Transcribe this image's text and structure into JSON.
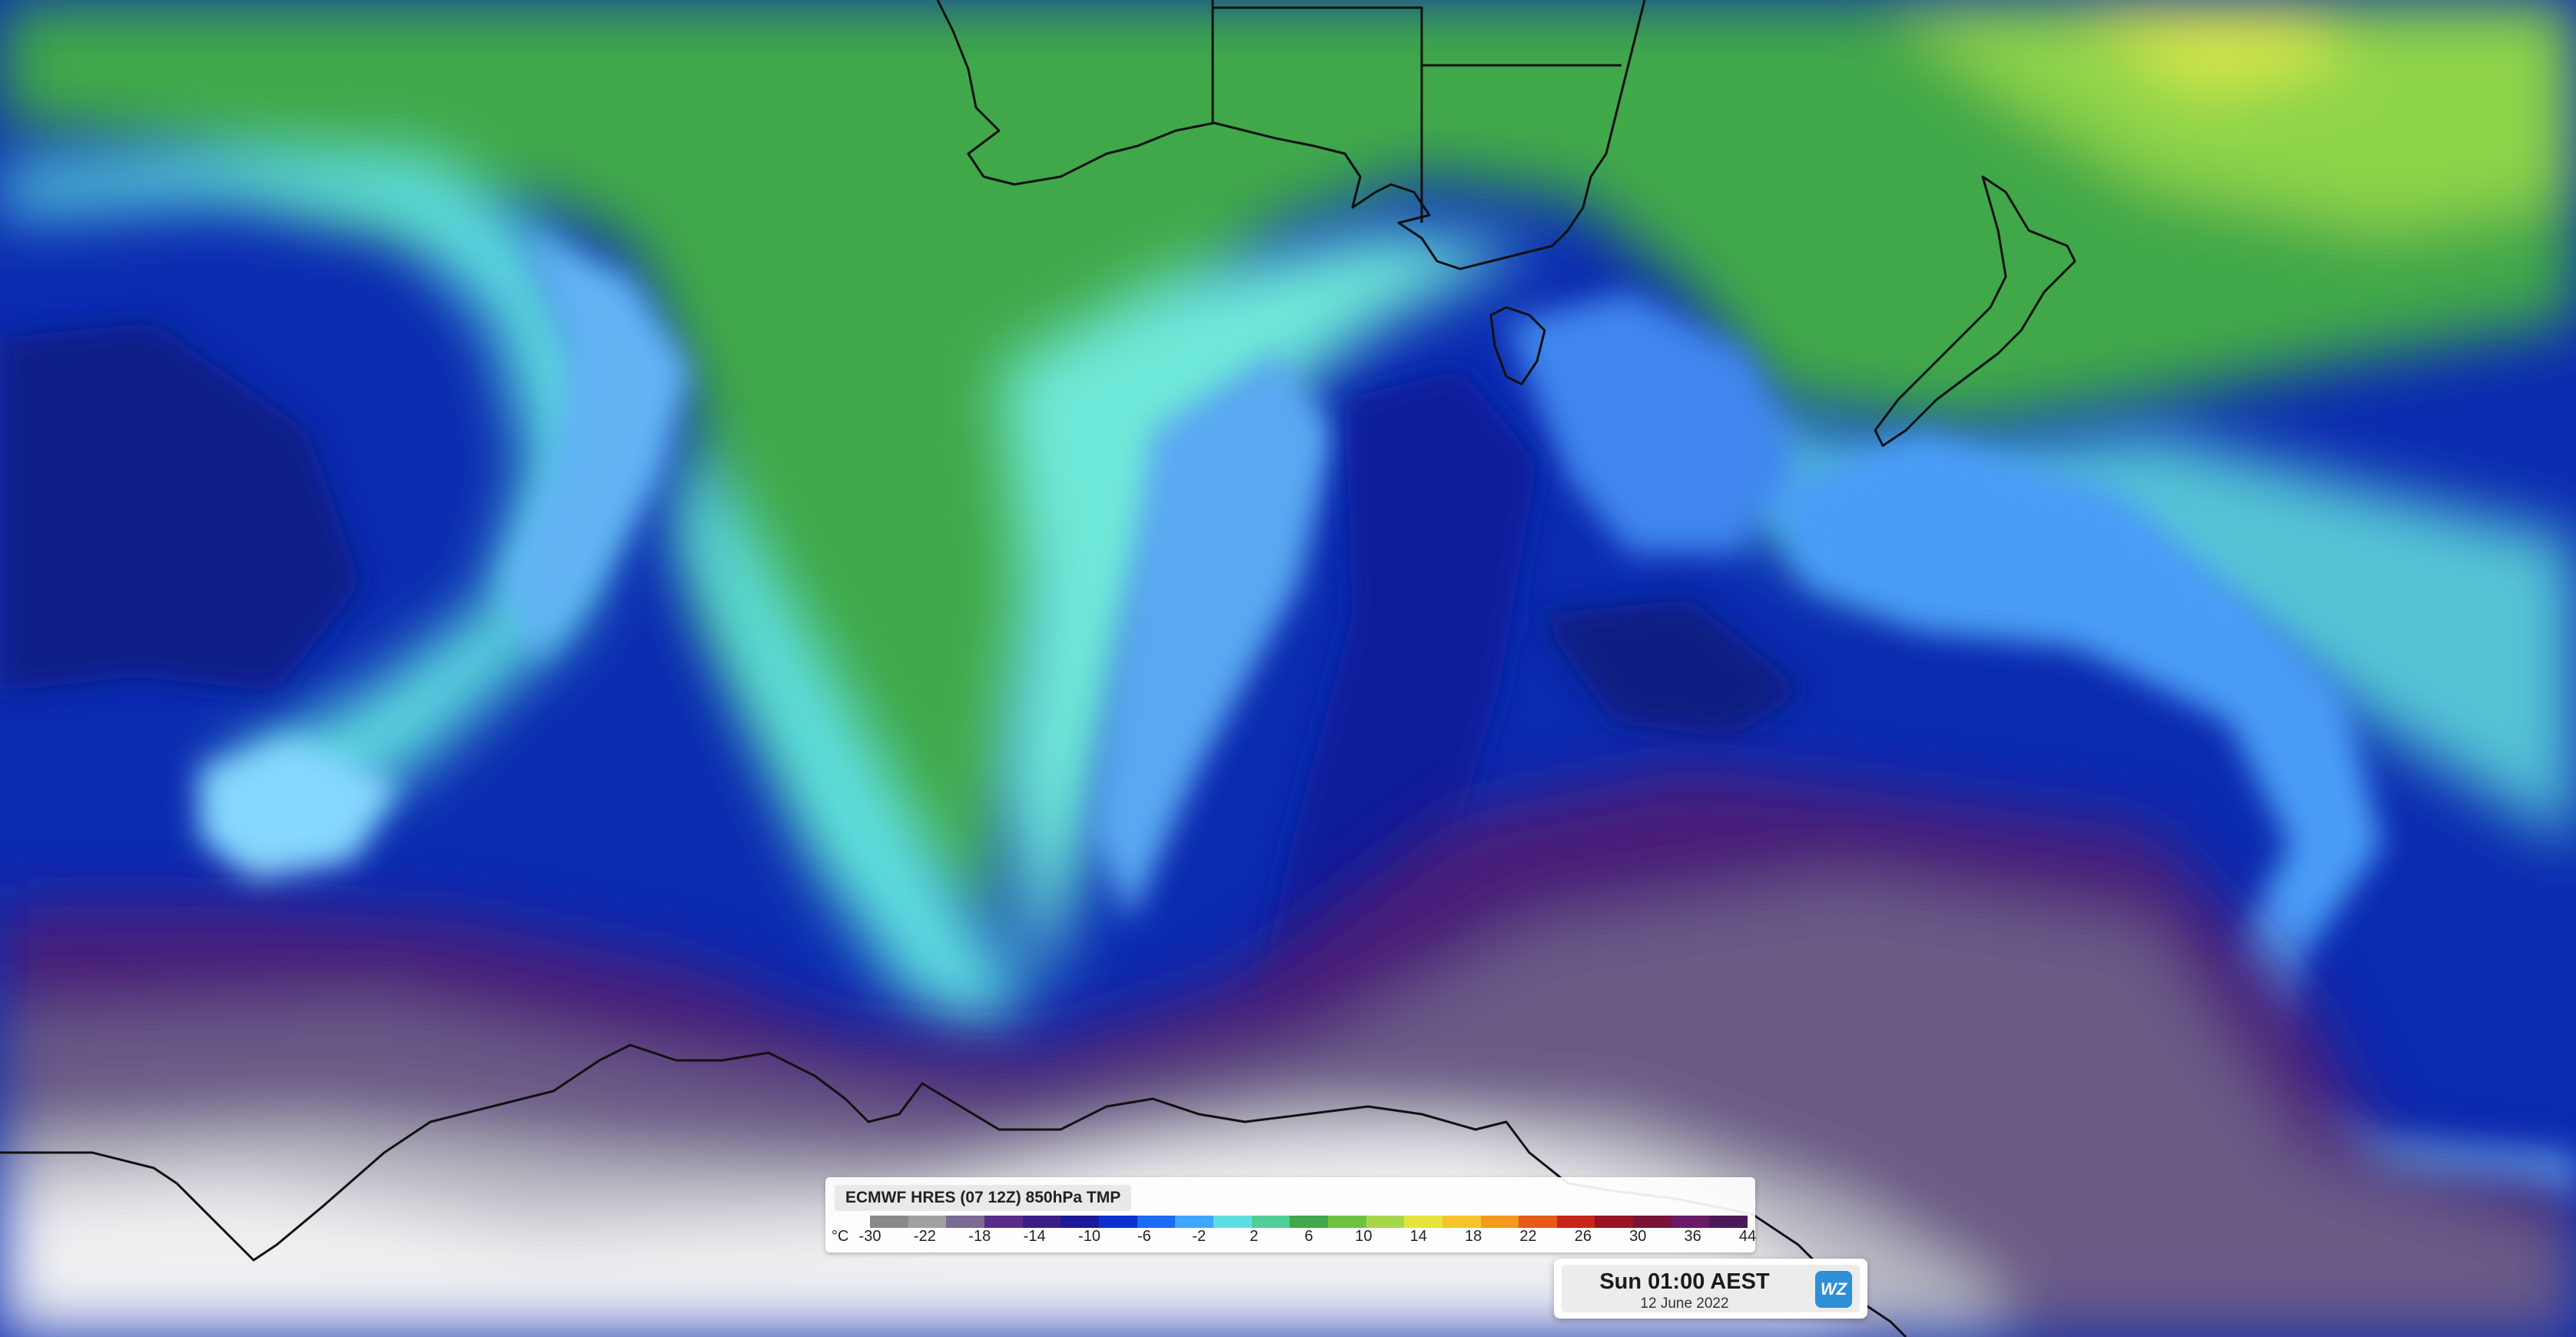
{
  "legend": {
    "title": "ECMWF HRES (07 12Z) 850hPa TMP",
    "unit": "°C",
    "labels": [
      "-30",
      "-22",
      "-18",
      "-14",
      "-10",
      "-6",
      "-2",
      "2",
      "6",
      "10",
      "14",
      "18",
      "22",
      "26",
      "30",
      "36",
      "44"
    ],
    "colors": [
      "#8a8a8a",
      "#a0a0a0",
      "#7a6a96",
      "#5a2c8a",
      "#3b1d86",
      "#1a1a9a",
      "#0c2fd0",
      "#1a6cf2",
      "#3ea6ff",
      "#5fe0e0",
      "#50cf9a",
      "#3fa84a",
      "#6fc23e",
      "#a7d84a",
      "#e4e43c",
      "#f6c52a",
      "#f39a1c",
      "#e8591a",
      "#c8261a",
      "#9a1224",
      "#7a1436",
      "#6a1a66",
      "#4a1a5a"
    ]
  },
  "timestamp": {
    "main": "Sun 01:00 AEST",
    "date": "12 June 2022",
    "logo": "WZ"
  },
  "map_features": [
    "australia-coastline",
    "tasmania",
    "new-zealand",
    "antarctica-coastline",
    "state-borders"
  ]
}
